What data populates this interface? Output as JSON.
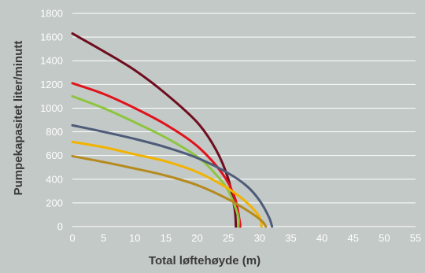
{
  "chart_data": {
    "type": "line",
    "title": "",
    "xlabel": "Total løftehøyde (m)",
    "ylabel": "Pumpekapasitet liter/minutt",
    "xlim": [
      0,
      55
    ],
    "ylim": [
      0,
      1800
    ],
    "x_ticks": [
      "0",
      "5",
      "10",
      "15",
      "20",
      "25",
      "30",
      "35",
      "40",
      "45",
      "50",
      "55"
    ],
    "y_ticks": [
      "0",
      "200",
      "400",
      "600",
      "800",
      "1000",
      "1200",
      "1400",
      "1600",
      "1800"
    ],
    "grid": "horizontal",
    "legend": "none",
    "background_color": "#c3c9c7",
    "grid_color": "#ffffff",
    "series": [
      {
        "color": "#6f0d1e",
        "points": [
          [
            0,
            1630
          ],
          [
            5,
            1480
          ],
          [
            10,
            1320
          ],
          [
            15,
            1120
          ],
          [
            20,
            880
          ],
          [
            23,
            650
          ],
          [
            25,
            400
          ],
          [
            26,
            150
          ],
          [
            26.2,
            0
          ]
        ]
      },
      {
        "color": "#e0131b",
        "points": [
          [
            0,
            1210
          ],
          [
            5,
            1120
          ],
          [
            10,
            1000
          ],
          [
            15,
            860
          ],
          [
            20,
            680
          ],
          [
            24,
            450
          ],
          [
            26,
            250
          ],
          [
            26.8,
            50
          ],
          [
            26.9,
            0
          ]
        ]
      },
      {
        "color": "#8ec540",
        "points": [
          [
            0,
            1100
          ],
          [
            5,
            1000
          ],
          [
            10,
            880
          ],
          [
            15,
            750
          ],
          [
            20,
            590
          ],
          [
            23,
            440
          ],
          [
            25,
            300
          ],
          [
            26.5,
            100
          ],
          [
            26.6,
            0
          ]
        ]
      },
      {
        "color": "#4e5c7a",
        "points": [
          [
            0,
            855
          ],
          [
            5,
            800
          ],
          [
            10,
            740
          ],
          [
            15,
            670
          ],
          [
            20,
            580
          ],
          [
            25,
            450
          ],
          [
            28,
            340
          ],
          [
            30,
            220
          ],
          [
            31.5,
            80
          ],
          [
            32,
            0
          ]
        ]
      },
      {
        "color": "#f2b300",
        "points": [
          [
            0,
            715
          ],
          [
            5,
            670
          ],
          [
            10,
            610
          ],
          [
            15,
            550
          ],
          [
            20,
            460
          ],
          [
            25,
            320
          ],
          [
            28,
            200
          ],
          [
            30,
            80
          ],
          [
            30.3,
            0
          ]
        ]
      },
      {
        "color": "#b58a1e",
        "points": [
          [
            0,
            595
          ],
          [
            5,
            545
          ],
          [
            10,
            490
          ],
          [
            15,
            430
          ],
          [
            20,
            350
          ],
          [
            25,
            230
          ],
          [
            28.5,
            120
          ],
          [
            30.5,
            40
          ],
          [
            31,
            0
          ]
        ]
      }
    ]
  }
}
